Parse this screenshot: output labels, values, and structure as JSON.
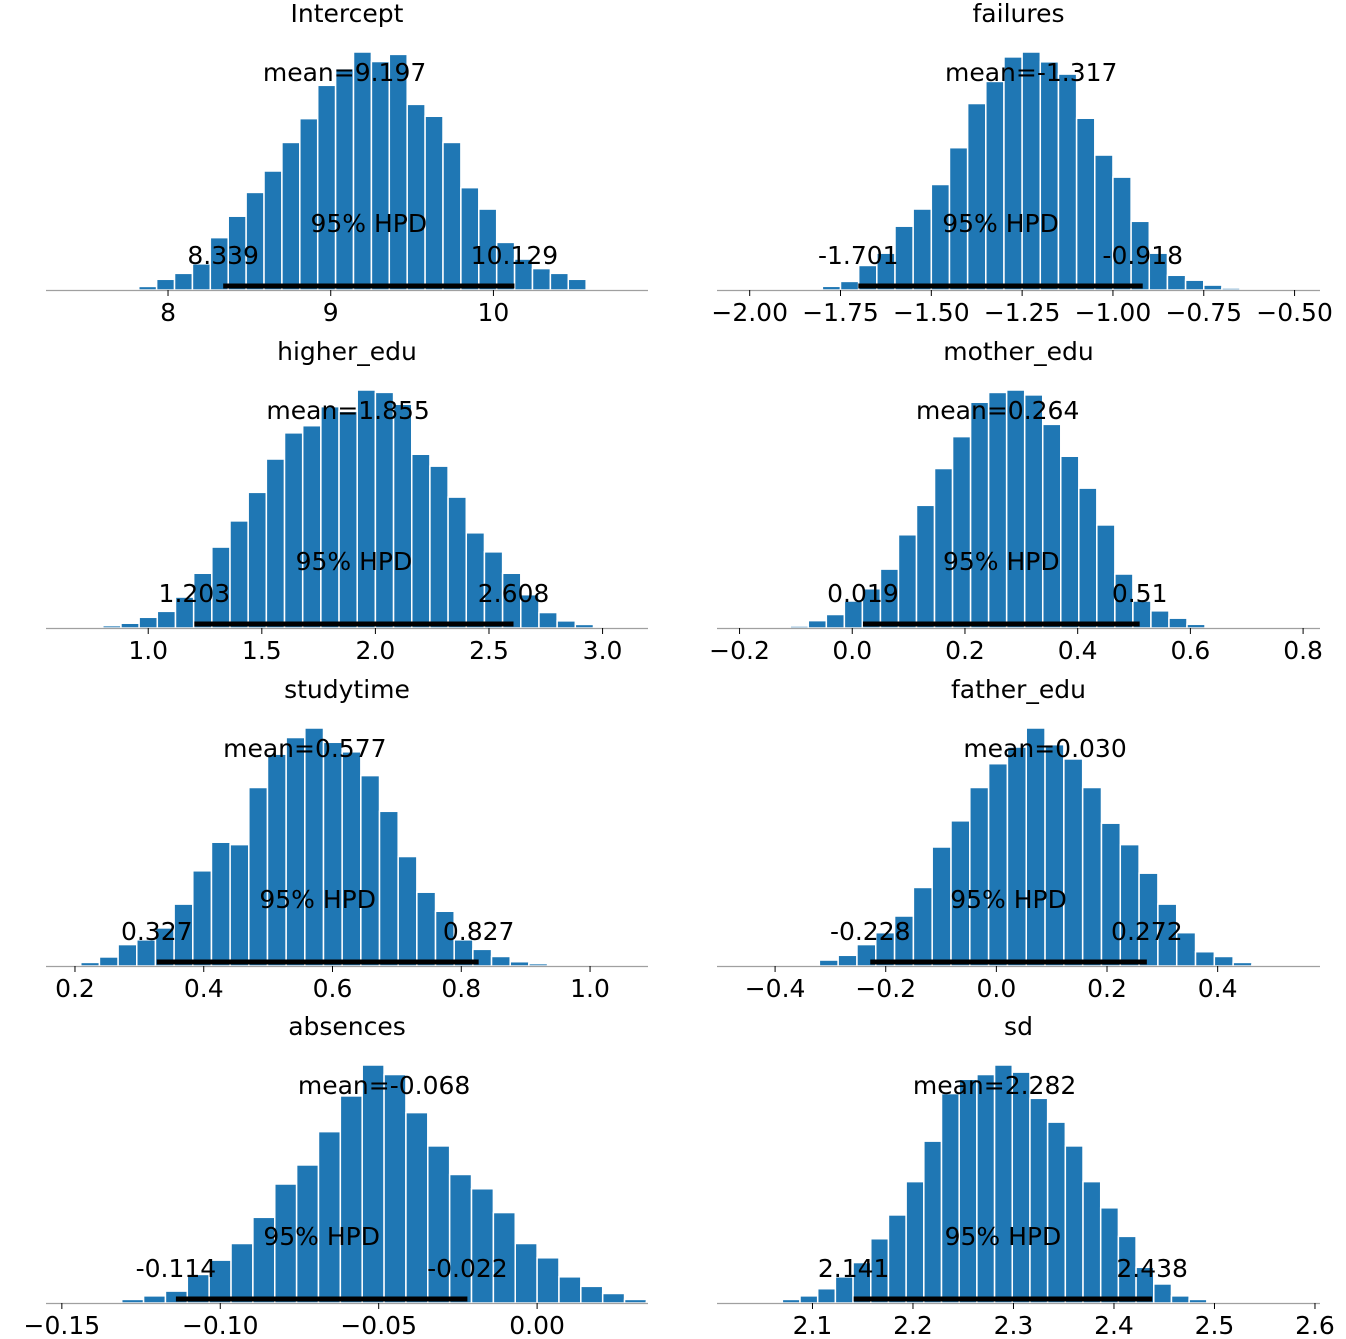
{
  "chart_data": [
    {
      "type": "bar",
      "title": "Intercept",
      "xticks": [
        8,
        9,
        10
      ],
      "tick_labels": [
        "8",
        "9",
        "10"
      ],
      "xlim": [
        7.25,
        10.95
      ],
      "hist": {
        "start": 7.6,
        "width": 0.11,
        "heights": [
          0.3,
          0.6,
          1.5,
          4.5,
          7,
          11,
          22,
          31,
          41,
          50,
          62,
          72,
          86,
          93,
          100,
          96,
          99,
          78,
          73,
          62,
          43,
          34,
          20,
          13,
          9,
          7,
          4.5
        ]
      },
      "mean_label": "mean=9.197",
      "hpd_low": 8.339,
      "hpd_high": 10.129,
      "hpd_low_label": "8.339",
      "hpd_high_label": "10.129",
      "hpd_label": "95% HPD"
    },
    {
      "type": "bar",
      "title": "failures",
      "xticks": [
        -2.0,
        -1.75,
        -1.5,
        -1.25,
        -1.0,
        -0.75,
        -0.5
      ],
      "tick_labels": [
        "−2.00",
        "−1.75",
        "−1.50",
        "−1.25",
        "−1.00",
        "−0.75",
        "−0.50"
      ],
      "xlim": [
        -2.09,
        -0.43
      ],
      "hist": {
        "start": -1.85,
        "width": 0.05,
        "heights": [
          0.5,
          1.5,
          3.5,
          10,
          15,
          26,
          33,
          43,
          58,
          76,
          85,
          95,
          97,
          93,
          88,
          70,
          55,
          46,
          28,
          15,
          6,
          4,
          2,
          0.8,
          0.3
        ]
      },
      "mean_label": "mean=-1.317",
      "hpd_low": -1.701,
      "hpd_high": -0.918,
      "hpd_low_label": "-1.701",
      "hpd_high_label": "-0.918",
      "hpd_label": "95% HPD"
    },
    {
      "type": "bar",
      "title": "higher_edu",
      "xticks": [
        1.0,
        1.5,
        2.0,
        2.5,
        3.0
      ],
      "tick_labels": [
        "1.0",
        "1.5",
        "2.0",
        "2.5",
        "3.0"
      ],
      "xlim": [
        0.55,
        3.2
      ],
      "hist": {
        "start": 0.8,
        "width": 0.08,
        "heights": [
          1,
          2,
          4.5,
          7,
          13,
          23,
          34,
          45,
          57,
          71,
          82,
          85,
          93,
          91,
          100,
          99,
          94,
          73,
          68,
          55,
          40,
          32,
          23,
          14,
          6.5,
          3,
          1.5
        ]
      },
      "mean_label": "mean=1.855",
      "hpd_low": 1.203,
      "hpd_high": 2.608,
      "hpd_low_label": "1.203",
      "hpd_high_label": "2.608",
      "hpd_label": "95% HPD"
    },
    {
      "type": "bar",
      "title": "mother_edu",
      "xticks": [
        -0.2,
        0.0,
        0.2,
        0.4,
        0.6,
        0.8
      ],
      "tick_labels": [
        "−0.2",
        "0.0",
        "0.2",
        "0.4",
        "0.6",
        "0.8"
      ],
      "xlim": [
        -0.24,
        0.83
      ],
      "hist": {
        "start": -0.11,
        "width": 0.032,
        "heights": [
          0.8,
          3,
          5.5,
          11,
          16,
          24,
          38,
          50,
          65,
          78,
          92,
          96,
          97,
          95,
          83,
          70,
          57,
          42,
          22,
          11,
          7,
          4,
          1.5
        ]
      },
      "mean_label": "mean=0.264",
      "hpd_low": 0.019,
      "hpd_high": 0.51,
      "hpd_low_label": "0.019",
      "hpd_high_label": "0.51",
      "hpd_label": "95% HPD"
    },
    {
      "type": "bar",
      "title": "studytime",
      "xticks": [
        0.2,
        0.4,
        0.6,
        0.8,
        1.0
      ],
      "tick_labels": [
        "0.2",
        "0.4",
        "0.6",
        "0.8",
        "1.0"
      ],
      "xlim": [
        0.155,
        1.09
      ],
      "hist": {
        "start": 0.18,
        "width": 0.029,
        "heights": [
          0.5,
          1.5,
          3.8,
          9,
          11,
          16,
          26,
          40,
          52,
          51,
          75,
          89,
          96,
          100,
          94,
          90,
          80,
          65,
          46,
          31,
          23,
          11,
          7,
          4,
          1.8,
          1
        ]
      },
      "mean_label": "mean=0.577",
      "hpd_low": 0.327,
      "hpd_high": 0.827,
      "hpd_low_label": "0.327",
      "hpd_high_label": "0.827",
      "hpd_label": "95% HPD"
    },
    {
      "type": "bar",
      "title": "father_edu",
      "xticks": [
        -0.4,
        -0.2,
        0.0,
        0.2,
        0.4
      ],
      "tick_labels": [
        "−0.4",
        "−0.2",
        "0.0",
        "0.2",
        "0.4"
      ],
      "xlim": [
        -0.505,
        0.585
      ],
      "hist": {
        "start": -0.32,
        "width": 0.034,
        "heights": [
          2.5,
          4.5,
          9,
          14,
          21,
          33,
          50,
          61,
          75,
          85,
          92,
          100,
          93,
          87,
          75,
          60,
          51,
          39,
          26,
          14,
          6,
          4,
          1.5,
          0.5
        ]
      },
      "mean_label": "mean=0.030",
      "hpd_low": -0.228,
      "hpd_high": 0.272,
      "hpd_low_label": "-0.228",
      "hpd_high_label": "0.272",
      "hpd_label": "95% HPD"
    },
    {
      "type": "bar",
      "title": "absences",
      "xticks": [
        -0.15,
        -0.1,
        -0.05,
        0.0
      ],
      "tick_labels": [
        "−0.15",
        "−0.10",
        "−0.05",
        "0.00"
      ],
      "xlim": [
        -0.155,
        0.035
      ],
      "hist": {
        "start": -0.138,
        "width": 0.0069,
        "heights": [
          0.5,
          1.5,
          3,
          5,
          12,
          18,
          25,
          36,
          50,
          58,
          72,
          87,
          100,
          96,
          80,
          66,
          54,
          48,
          38,
          25,
          19,
          11,
          7,
          4,
          1.5,
          0.5
        ]
      },
      "mean_label": "mean=-0.068",
      "hpd_low": -0.114,
      "hpd_high": -0.022,
      "hpd_low_label": "-0.114",
      "hpd_high_label": "-0.022",
      "hpd_label": "95% HPD"
    },
    {
      "type": "bar",
      "title": "sd",
      "xticks": [
        2.1,
        2.2,
        2.3,
        2.4,
        2.5,
        2.6
      ],
      "tick_labels": [
        "2.1",
        "2.2",
        "2.3",
        "2.4",
        "2.5",
        "2.6"
      ],
      "xlim": [
        2.005,
        2.605
      ],
      "hist": {
        "start": 2.07,
        "width": 0.0176,
        "heights": [
          1.5,
          3,
          6,
          11,
          17,
          27,
          37,
          51,
          68,
          88,
          94,
          96,
          100,
          97,
          86,
          76,
          66,
          51,
          40,
          28,
          15,
          8,
          3,
          1.5
        ]
      },
      "mean_label": "mean=2.282",
      "hpd_low": 2.141,
      "hpd_high": 2.438,
      "hpd_low_label": "2.141",
      "hpd_high_label": "2.438",
      "hpd_label": "95% HPD"
    }
  ],
  "colors": {
    "bar": "#1f77b4",
    "bar_edge": "#ffffff",
    "hpd_line": "#000000",
    "axis": "#a0a0a0"
  }
}
